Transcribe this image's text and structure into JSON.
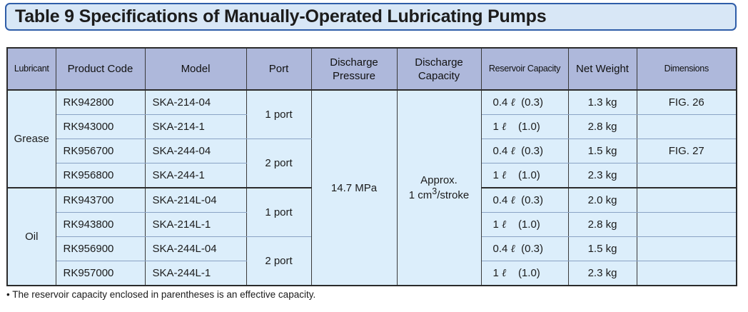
{
  "title": "Table 9 Specifications of Manually-Operated Lubricating Pumps",
  "headers": {
    "lubricant": "Lubricant",
    "product_code": "Product Code",
    "model": "Model",
    "port": "Port",
    "discharge_pressure_1": "Discharge",
    "discharge_pressure_2": "Pressure",
    "discharge_capacity_1": "Discharge",
    "discharge_capacity_2": "Capacity",
    "reservoir_capacity": "Reservoir Capacity",
    "net_weight": "Net Weight",
    "dimensions": "Dimensions"
  },
  "groups": [
    {
      "lubricant": "Grease"
    },
    {
      "lubricant": "Oil"
    }
  ],
  "ports": [
    "1 port",
    "2 port",
    "1 port",
    "2 port"
  ],
  "discharge_pressure": "14.7 MPa",
  "discharge_capacity": {
    "line1": "Approx.",
    "line2_prefix": "1 cm",
    "superscript": "3",
    "line2_suffix": "/stroke"
  },
  "liter_symbol": "ℓ",
  "rows": [
    {
      "code": "RK942800",
      "model": "SKA-214-04",
      "cap_num": "0.4",
      "cap_eff": "(0.3)",
      "weight": "1.3 kg",
      "dim": "FIG. 26"
    },
    {
      "code": "RK943000",
      "model": "SKA-214-1",
      "cap_num": "1",
      "cap_eff": "(1.0)",
      "weight": "2.8 kg",
      "dim": ""
    },
    {
      "code": "RK956700",
      "model": "SKA-244-04",
      "cap_num": "0.4",
      "cap_eff": "(0.3)",
      "weight": "1.5 kg",
      "dim": "FIG. 27"
    },
    {
      "code": "RK956800",
      "model": "SKA-244-1",
      "cap_num": "1",
      "cap_eff": "(1.0)",
      "weight": "2.3 kg",
      "dim": ""
    },
    {
      "code": "RK943700",
      "model": "SKA-214L-04",
      "cap_num": "0.4",
      "cap_eff": "(0.3)",
      "weight": "2.0 kg",
      "dim": ""
    },
    {
      "code": "RK943800",
      "model": "SKA-214L-1",
      "cap_num": "1",
      "cap_eff": "(1.0)",
      "weight": "2.8 kg",
      "dim": ""
    },
    {
      "code": "RK956900",
      "model": "SKA-244L-04",
      "cap_num": "0.4",
      "cap_eff": "(0.3)",
      "weight": "1.5 kg",
      "dim": ""
    },
    {
      "code": "RK957000",
      "model": "SKA-244L-1",
      "cap_num": "1",
      "cap_eff": "(1.0)",
      "weight": "2.3 kg",
      "dim": ""
    }
  ],
  "footnote": "• The reservoir capacity enclosed in parentheses is an effective capacity.",
  "colors": {
    "header_bg": "#aeb8db",
    "cell_bg": "#dceefb",
    "title_border": "#2f5da8",
    "title_bg": "#d8e7f6"
  }
}
